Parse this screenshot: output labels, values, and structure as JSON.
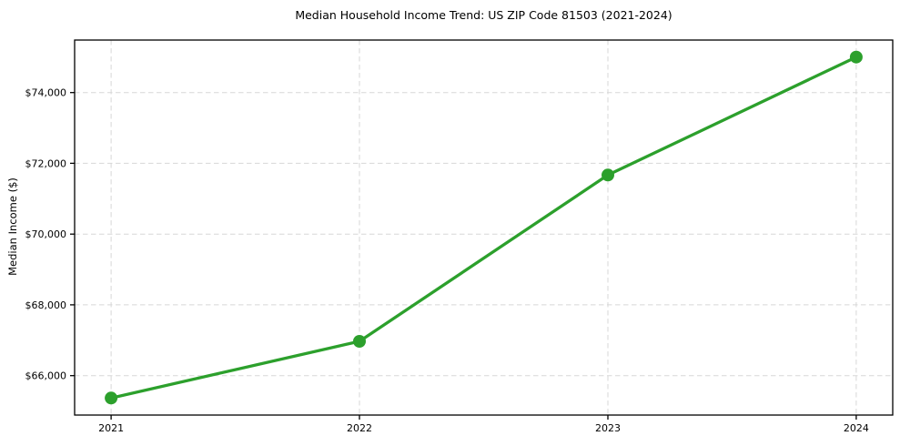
{
  "chart_data": {
    "type": "line",
    "title": "Median Household Income Trend: US ZIP Code 81503 (2021-2024)",
    "xlabel": "",
    "ylabel": "Median Income ($)",
    "x": [
      2021,
      2022,
      2023,
      2024
    ],
    "values": [
      65368,
      66969,
      71669,
      75002
    ],
    "x_tick_labels": [
      "2021",
      "2022",
      "2023",
      "2024"
    ],
    "y_ticks": [
      66000,
      68000,
      70000,
      72000,
      74000
    ],
    "y_tick_labels": [
      "$66,000",
      "$68,000",
      "$70,000",
      "$72,000",
      "$74,000"
    ],
    "xlim": [
      2020.853,
      2024.147
    ],
    "ylim": [
      64886,
      75484
    ],
    "grid": true,
    "grid_style": "dashed",
    "legend": "none",
    "marker": "circle",
    "colors": {
      "line": "#2ca02c",
      "marker": "#2ca02c",
      "grid": "#d7d7d7",
      "spine": "#000000",
      "text": "#000000",
      "background": "#ffffff"
    }
  }
}
